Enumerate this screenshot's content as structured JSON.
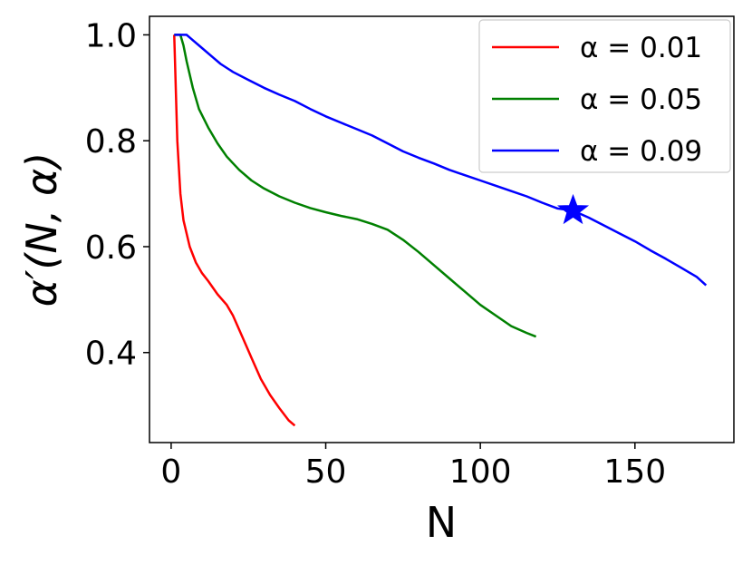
{
  "chart_data": {
    "type": "line",
    "title": "",
    "xlabel": "N",
    "ylabel": "α′(N, α)",
    "xlim": [
      -7,
      182
    ],
    "ylim": [
      0.23,
      1.035
    ],
    "xticks": [
      0,
      50,
      100,
      150
    ],
    "xtick_labels": [
      "0",
      "50",
      "100",
      "150"
    ],
    "yticks": [
      0.4,
      0.6,
      0.8,
      1.0
    ],
    "ytick_labels": [
      "0.4",
      "0.6",
      "0.8",
      "1.0"
    ],
    "grid": false,
    "legend_position": "top-right",
    "series": [
      {
        "name": "α = 0.01",
        "color": "#ff0000",
        "points": [
          [
            1,
            1.0
          ],
          [
            2,
            0.8
          ],
          [
            3,
            0.7
          ],
          [
            4,
            0.65
          ],
          [
            6,
            0.6
          ],
          [
            8,
            0.57
          ],
          [
            10,
            0.55
          ],
          [
            12,
            0.535
          ],
          [
            15,
            0.51
          ],
          [
            18,
            0.49
          ],
          [
            20,
            0.47
          ],
          [
            23,
            0.43
          ],
          [
            26,
            0.39
          ],
          [
            29,
            0.35
          ],
          [
            32,
            0.32
          ],
          [
            35,
            0.295
          ],
          [
            38,
            0.272
          ],
          [
            40,
            0.262
          ]
        ]
      },
      {
        "name": "α = 0.05",
        "color": "#008000",
        "points": [
          [
            1,
            1.0
          ],
          [
            3,
            1.0
          ],
          [
            4,
            0.98
          ],
          [
            5,
            0.95
          ],
          [
            7,
            0.9
          ],
          [
            9,
            0.86
          ],
          [
            12,
            0.825
          ],
          [
            15,
            0.795
          ],
          [
            18,
            0.77
          ],
          [
            22,
            0.745
          ],
          [
            26,
            0.725
          ],
          [
            30,
            0.71
          ],
          [
            35,
            0.695
          ],
          [
            40,
            0.683
          ],
          [
            45,
            0.673
          ],
          [
            50,
            0.665
          ],
          [
            55,
            0.658
          ],
          [
            60,
            0.652
          ],
          [
            65,
            0.643
          ],
          [
            70,
            0.632
          ],
          [
            75,
            0.613
          ],
          [
            80,
            0.59
          ],
          [
            85,
            0.565
          ],
          [
            90,
            0.54
          ],
          [
            95,
            0.515
          ],
          [
            100,
            0.49
          ],
          [
            105,
            0.47
          ],
          [
            110,
            0.45
          ],
          [
            115,
            0.437
          ],
          [
            118,
            0.43
          ]
        ]
      },
      {
        "name": "α = 0.09",
        "color": "#0000ff",
        "points": [
          [
            1,
            1.0
          ],
          [
            5,
            1.0
          ],
          [
            7,
            0.99
          ],
          [
            10,
            0.975
          ],
          [
            13,
            0.96
          ],
          [
            16,
            0.945
          ],
          [
            20,
            0.93
          ],
          [
            25,
            0.915
          ],
          [
            30,
            0.9
          ],
          [
            35,
            0.887
          ],
          [
            40,
            0.875
          ],
          [
            45,
            0.86
          ],
          [
            50,
            0.846
          ],
          [
            55,
            0.834
          ],
          [
            60,
            0.822
          ],
          [
            65,
            0.81
          ],
          [
            70,
            0.795
          ],
          [
            75,
            0.78
          ],
          [
            80,
            0.768
          ],
          [
            85,
            0.757
          ],
          [
            90,
            0.745
          ],
          [
            95,
            0.735
          ],
          [
            100,
            0.725
          ],
          [
            105,
            0.715
          ],
          [
            110,
            0.705
          ],
          [
            115,
            0.695
          ],
          [
            120,
            0.683
          ],
          [
            125,
            0.672
          ],
          [
            130,
            0.668
          ],
          [
            135,
            0.655
          ],
          [
            140,
            0.64
          ],
          [
            145,
            0.625
          ],
          [
            150,
            0.61
          ],
          [
            155,
            0.593
          ],
          [
            160,
            0.577
          ],
          [
            165,
            0.56
          ],
          [
            170,
            0.543
          ],
          [
            173,
            0.527
          ]
        ]
      }
    ],
    "annotations": [
      {
        "type": "star-marker",
        "x": 130,
        "y": 0.668,
        "color": "#0000ff"
      }
    ]
  }
}
